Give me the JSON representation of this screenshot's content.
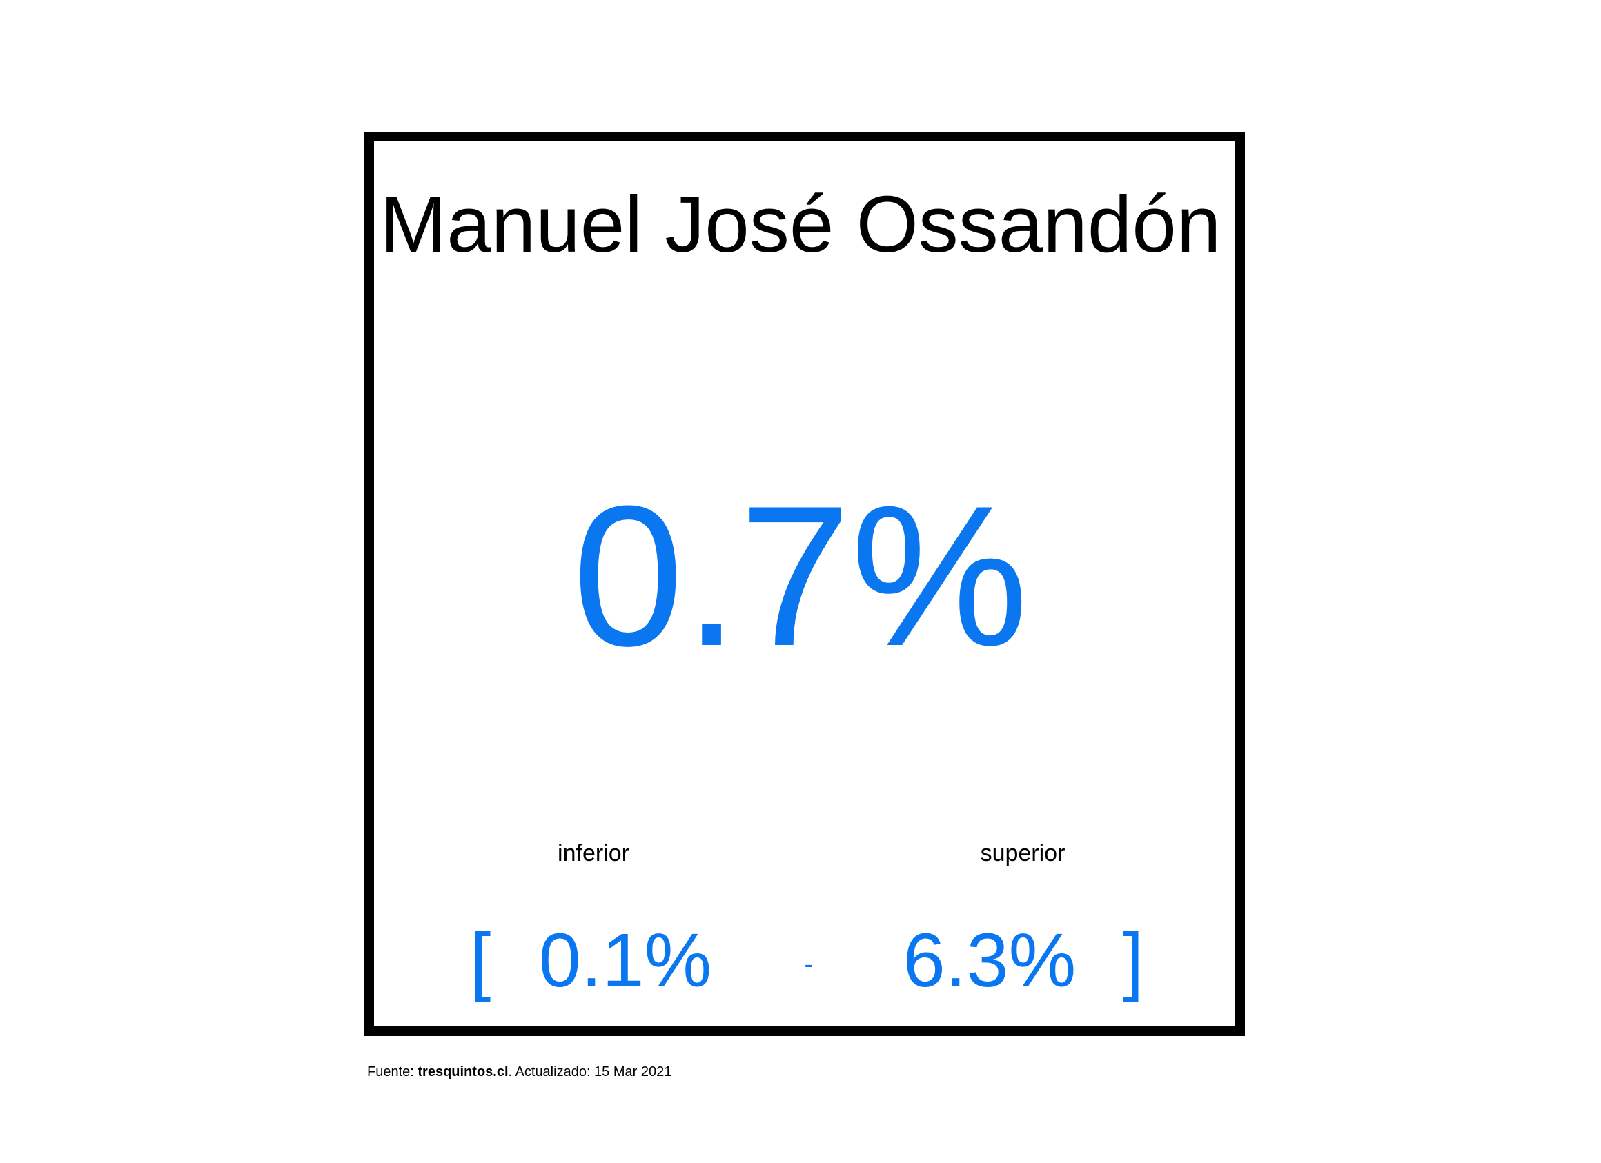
{
  "card": {
    "name": "Manuel José Ossandón",
    "value": "0.7%",
    "labels": {
      "lower": "inferior",
      "upper": "superior"
    },
    "range": {
      "open_bracket": "[",
      "lower": "0.1%",
      "separator": "-",
      "upper": "6.3%",
      "close_bracket": "]"
    }
  },
  "footer": {
    "prefix": "Fuente: ",
    "source": "tresquintos.cl",
    "suffix": ". Actualizado: 15 Mar 2021"
  },
  "colors": {
    "accent": "#0a76f0",
    "text": "#000000",
    "border": "#000000",
    "background": "#ffffff"
  }
}
